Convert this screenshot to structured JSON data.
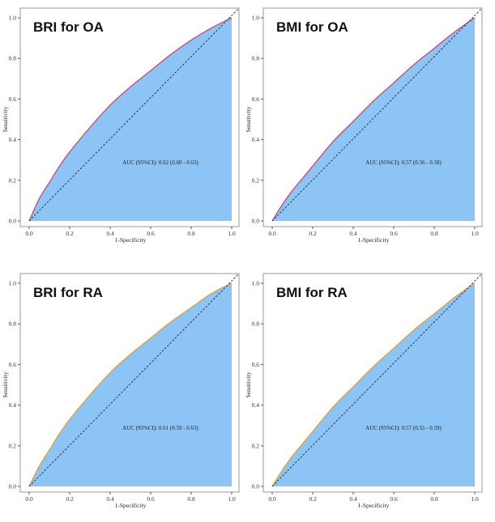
{
  "chart_data": [
    {
      "type": "area",
      "title": "BRI for OA",
      "xlabel": "1-Specificity",
      "ylabel": "Sensitivity",
      "xlim": [
        0,
        1
      ],
      "ylim": [
        0,
        1
      ],
      "ticks": [
        "0.0",
        "0.2",
        "0.4",
        "0.6",
        "0.8",
        "1.0"
      ],
      "annotation": "AUC (95%CI): 0.62 (0.60 - 0.63)",
      "curve_color": "#d1456a",
      "fill_color": "#8dc4f6",
      "x": [
        0,
        0.05,
        0.1,
        0.15,
        0.2,
        0.3,
        0.4,
        0.5,
        0.6,
        0.7,
        0.8,
        0.9,
        1.0
      ],
      "y": [
        0,
        0.11,
        0.19,
        0.27,
        0.34,
        0.46,
        0.57,
        0.66,
        0.74,
        0.82,
        0.89,
        0.95,
        1.0
      ]
    },
    {
      "type": "area",
      "title": "BMI for OA",
      "xlabel": "1-Specificity",
      "ylabel": "Sensitivity",
      "xlim": [
        0,
        1
      ],
      "ylim": [
        0,
        1
      ],
      "ticks": [
        "0.0",
        "0.2",
        "0.4",
        "0.6",
        "0.8",
        "1.0"
      ],
      "annotation": "AUC (95%CI): 0.57 (0.56 - 0.58)",
      "curve_color": "#d1456a",
      "fill_color": "#8dc4f6",
      "x": [
        0,
        0.05,
        0.1,
        0.15,
        0.2,
        0.3,
        0.4,
        0.5,
        0.6,
        0.7,
        0.8,
        0.9,
        1.0
      ],
      "y": [
        0,
        0.08,
        0.15,
        0.21,
        0.27,
        0.39,
        0.49,
        0.59,
        0.68,
        0.77,
        0.85,
        0.93,
        1.0
      ]
    },
    {
      "type": "area",
      "title": "BRI for RA",
      "xlabel": "1-Specificity",
      "ylabel": "Sensitivity",
      "xlim": [
        0,
        1
      ],
      "ylim": [
        0,
        1
      ],
      "ticks": [
        "0.0",
        "0.2",
        "0.4",
        "0.6",
        "0.8",
        "1.0"
      ],
      "annotation": "AUC (95%CI): 0.61 (0.59 - 0.63)",
      "curve_color": "#e0a030",
      "fill_color": "#8dc4f6",
      "x": [
        0,
        0.05,
        0.1,
        0.15,
        0.2,
        0.3,
        0.4,
        0.5,
        0.6,
        0.7,
        0.8,
        0.9,
        1.0
      ],
      "y": [
        0,
        0.1,
        0.18,
        0.26,
        0.33,
        0.45,
        0.56,
        0.65,
        0.73,
        0.81,
        0.88,
        0.95,
        1.0
      ]
    },
    {
      "type": "area",
      "title": "BMI for RA",
      "xlabel": "1-Specificity",
      "ylabel": "Sensitivity",
      "xlim": [
        0,
        1
      ],
      "ylim": [
        0,
        1
      ],
      "ticks": [
        "0.0",
        "0.2",
        "0.4",
        "0.6",
        "0.8",
        "1.0"
      ],
      "annotation": "AUC (95%CI): 0.57 (0.55 - 0.59)",
      "curve_color": "#e0a030",
      "fill_color": "#8dc4f6",
      "x": [
        0,
        0.05,
        0.1,
        0.15,
        0.2,
        0.3,
        0.4,
        0.5,
        0.6,
        0.7,
        0.8,
        0.9,
        1.0
      ],
      "y": [
        0,
        0.08,
        0.15,
        0.21,
        0.27,
        0.39,
        0.49,
        0.59,
        0.68,
        0.77,
        0.85,
        0.93,
        1.0
      ]
    }
  ]
}
